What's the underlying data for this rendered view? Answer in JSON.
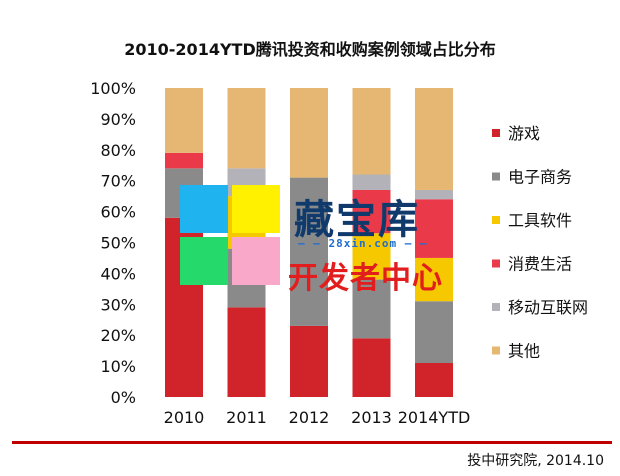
{
  "chart_data": {
    "type": "bar",
    "stacked": true,
    "title": "2010-2014YTD腾讯投资和收购案例领域占比分布",
    "categories": [
      "2010",
      "2011",
      "2012",
      "2013",
      "2014YTD"
    ],
    "ylim": [
      0,
      100
    ],
    "yticks": [
      "0%",
      "10%",
      "20%",
      "30%",
      "40%",
      "50%",
      "60%",
      "70%",
      "80%",
      "90%",
      "100%"
    ],
    "series": [
      {
        "name": "游戏",
        "color": "#d1232a",
        "values": [
          58,
          29,
          23,
          19,
          11
        ]
      },
      {
        "name": "电子商务",
        "color": "#8a8a8a",
        "values": [
          16,
          19,
          48,
          19,
          20
        ]
      },
      {
        "name": "工具软件",
        "color": "#f6c800",
        "values": [
          0,
          17,
          0,
          15,
          14
        ]
      },
      {
        "name": "消费生活",
        "color": "#ea3a4a",
        "values": [
          5,
          0,
          0,
          14,
          19
        ]
      },
      {
        "name": "移动互联网",
        "color": "#b2b2b8",
        "values": [
          0,
          9,
          0,
          5,
          3
        ]
      },
      {
        "name": "其他",
        "color": "#e6b772",
        "values": [
          21,
          26,
          29,
          28,
          33
        ]
      }
    ],
    "legend_position": "right"
  },
  "watermark": {
    "main": "藏宝库",
    "sub": "— — 28xin.com — —",
    "bottom": "开发者中心",
    "colors": [
      "#1fb4ef",
      "#fff100",
      "#25d96a",
      "#f9a8c9"
    ]
  },
  "source": "投中研究院, 2014.10"
}
